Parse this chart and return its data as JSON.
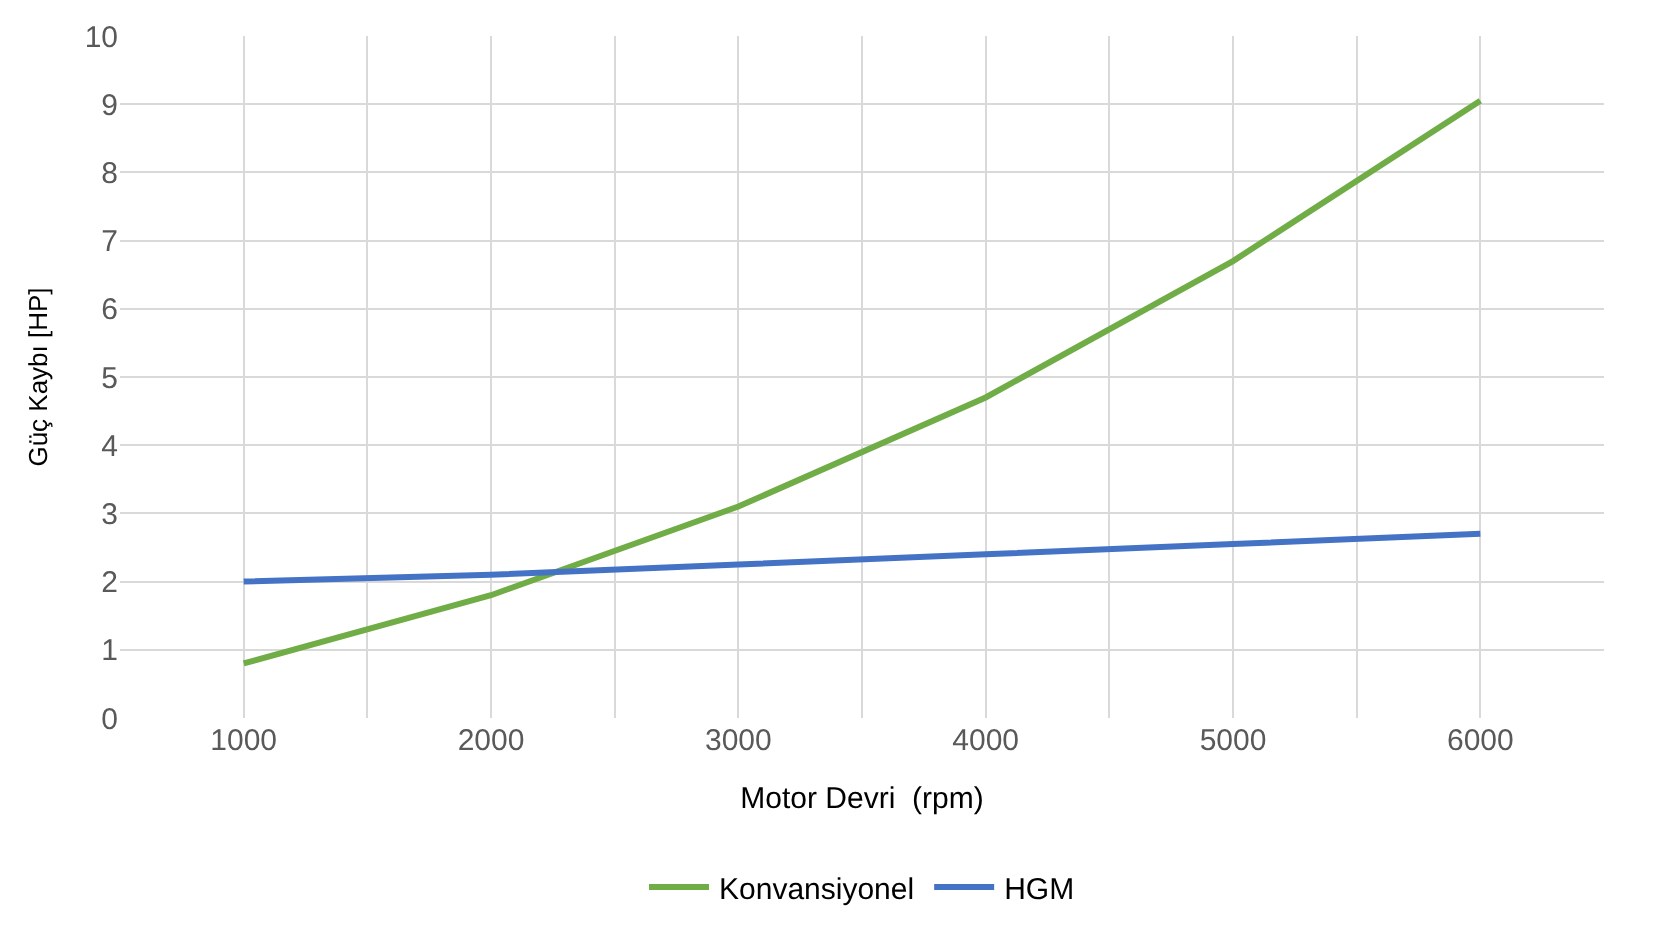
{
  "chart_data": {
    "type": "line",
    "xlabel": "Motor Devri  (rpm)",
    "ylabel": "Güç Kaybı [HP]",
    "x": [
      1000,
      2000,
      3000,
      4000,
      5000,
      6000
    ],
    "series": [
      {
        "name": "Konvansiyonel",
        "color": "#70ad47",
        "values": [
          0.8,
          1.8,
          3.1,
          4.7,
          6.7,
          9.05
        ]
      },
      {
        "name": "HGM",
        "color": "#4472c4",
        "values": [
          2.0,
          2.1,
          2.25,
          2.4,
          2.55,
          2.7
        ]
      }
    ],
    "xlim": [
      500,
      6500
    ],
    "xticks": [
      1000,
      {
        "value": 1500,
        "label": null
      },
      2000,
      {
        "value": 2500,
        "label": null
      },
      3000,
      {
        "value": 3500,
        "label": null
      },
      4000,
      {
        "value": 4500,
        "label": null
      },
      5000,
      {
        "value": 5500,
        "label": null
      },
      6000
    ],
    "ylim": [
      0,
      10
    ],
    "yticks": [
      0,
      1,
      2,
      3,
      4,
      5,
      6,
      7,
      8,
      9,
      10
    ],
    "grid": true,
    "legend": "bottom",
    "marker": "none",
    "line_style": "solid"
  }
}
